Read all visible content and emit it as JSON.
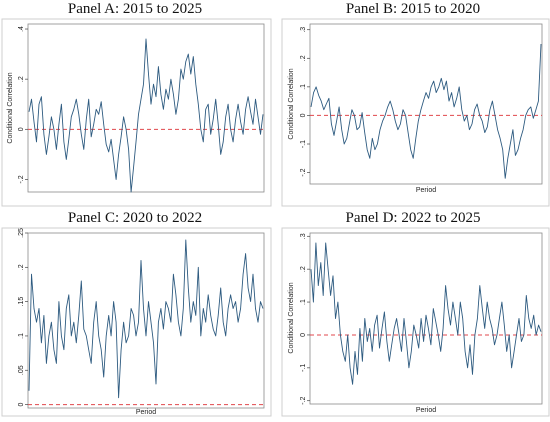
{
  "chart_data": [
    {
      "type": "line",
      "title": "Panel A: 2015 to 2025",
      "xlabel": "",
      "ylabel": "Conditional Correlation",
      "ylim": [
        -0.25,
        0.42
      ],
      "yticks": [
        -0.2,
        0,
        0.2,
        0.4
      ],
      "ytick_labels": [
        "-.2",
        "0",
        ".2",
        ".4"
      ],
      "reference_line": 0,
      "colors": {
        "series": "#2e5b80",
        "reference": "#e0474c"
      },
      "grid": false,
      "series": [
        {
          "values": [
            0.07,
            0.12,
            0.03,
            -0.05,
            0.1,
            0.13,
            -0.02,
            -0.1,
            -0.03,
            0.05,
            0.0,
            -0.08,
            0.02,
            0.1,
            -0.05,
            -0.12,
            -0.04,
            0.05,
            0.08,
            0.12,
            0.06,
            -0.02,
            -0.08,
            0.04,
            0.12,
            -0.03,
            0.02,
            0.08,
            0.06,
            0.11,
            0.02,
            -0.06,
            -0.09,
            -0.04,
            -0.12,
            -0.2,
            -0.1,
            -0.03,
            0.05,
            0.0,
            -0.08,
            -0.25,
            -0.15,
            -0.05,
            0.06,
            0.12,
            0.18,
            0.36,
            0.22,
            0.1,
            0.18,
            0.13,
            0.25,
            0.14,
            0.08,
            0.16,
            0.12,
            0.2,
            0.14,
            0.06,
            0.12,
            0.24,
            0.2,
            0.27,
            0.3,
            0.22,
            0.29,
            0.18,
            0.1,
            0.0,
            -0.05,
            0.08,
            0.1,
            -0.02,
            0.04,
            0.12,
            0.02,
            -0.1,
            -0.05,
            0.05,
            0.1,
            0.0,
            -0.05,
            0.04,
            0.1,
            0.03,
            -0.02,
            0.08,
            0.13,
            0.07,
            0.02,
            0.12,
            0.05,
            -0.02,
            0.06
          ]
        }
      ]
    },
    {
      "type": "line",
      "title": "Panel B: 2015 to 2020",
      "xlabel": "Period",
      "ylabel": "Conditional Correlation",
      "ylim": [
        -0.24,
        0.32
      ],
      "yticks": [
        -0.2,
        -0.1,
        0,
        0.1,
        0.2,
        0.3
      ],
      "ytick_labels": [
        "-.2",
        "-.1",
        "0",
        ".1",
        ".2",
        ".3"
      ],
      "reference_line": 0,
      "colors": {
        "series": "#2e5b80",
        "reference": "#e0474c"
      },
      "grid": false,
      "series": [
        {
          "values": [
            0.03,
            0.08,
            0.1,
            0.07,
            0.05,
            0.02,
            0.04,
            0.06,
            -0.03,
            -0.07,
            -0.02,
            0.03,
            -0.05,
            -0.1,
            -0.08,
            -0.03,
            0.02,
            0.0,
            -0.05,
            -0.04,
            0.01,
            -0.06,
            -0.12,
            -0.15,
            -0.08,
            -0.12,
            -0.1,
            -0.05,
            -0.02,
            0.0,
            0.03,
            0.05,
            0.02,
            -0.02,
            -0.05,
            -0.03,
            0.02,
            0.0,
            -0.06,
            -0.12,
            -0.15,
            -0.08,
            -0.02,
            0.02,
            0.05,
            0.08,
            0.06,
            0.1,
            0.12,
            0.08,
            0.1,
            0.13,
            0.09,
            0.12,
            0.05,
            0.08,
            0.03,
            0.06,
            0.1,
            0.02,
            -0.02,
            0.0,
            -0.05,
            -0.03,
            0.02,
            0.04,
            0.0,
            -0.02,
            -0.06,
            -0.04,
            0.02,
            0.05,
            0.0,
            -0.05,
            -0.08,
            -0.12,
            -0.22,
            -0.15,
            -0.1,
            -0.05,
            -0.14,
            -0.12,
            -0.08,
            -0.05,
            0.0,
            0.02,
            0.03,
            -0.01,
            0.02,
            0.05,
            0.25
          ]
        }
      ]
    },
    {
      "type": "line",
      "title": "Panel C: 2020 to 2022",
      "xlabel": "Period",
      "ylabel": "",
      "ylim": [
        -0.005,
        0.25
      ],
      "yticks": [
        0,
        0.05,
        0.1,
        0.15,
        0.2,
        0.25
      ],
      "ytick_labels": [
        "0",
        ".05",
        ".1",
        ".15",
        ".2",
        ".25"
      ],
      "reference_line": 0,
      "colors": {
        "series": "#2e5b80",
        "reference": "#e0474c"
      },
      "grid": false,
      "series": [
        {
          "values": [
            0.02,
            0.19,
            0.14,
            0.12,
            0.14,
            0.09,
            0.13,
            0.06,
            0.1,
            0.12,
            0.08,
            0.06,
            0.15,
            0.1,
            0.08,
            0.14,
            0.16,
            0.1,
            0.12,
            0.09,
            0.13,
            0.18,
            0.11,
            0.1,
            0.08,
            0.06,
            0.12,
            0.15,
            0.1,
            0.08,
            0.04,
            0.1,
            0.13,
            0.1,
            0.15,
            0.12,
            0.01,
            0.08,
            0.12,
            0.09,
            0.1,
            0.14,
            0.13,
            0.1,
            0.12,
            0.21,
            0.14,
            0.1,
            0.15,
            0.12,
            0.09,
            0.03,
            0.12,
            0.14,
            0.11,
            0.15,
            0.14,
            0.12,
            0.19,
            0.16,
            0.12,
            0.1,
            0.14,
            0.24,
            0.17,
            0.12,
            0.15,
            0.13,
            0.2,
            0.1,
            0.14,
            0.12,
            0.16,
            0.13,
            0.11,
            0.1,
            0.13,
            0.17,
            0.12,
            0.1,
            0.14,
            0.16,
            0.14,
            0.15,
            0.12,
            0.14,
            0.19,
            0.22,
            0.17,
            0.15,
            0.19,
            0.14,
            0.12,
            0.15,
            0.14
          ]
        }
      ]
    },
    {
      "type": "line",
      "title": "Panel D: 2022 to 2025",
      "xlabel": "Period",
      "ylabel": "Conditional Correlation",
      "ylim": [
        -0.21,
        0.31
      ],
      "yticks": [
        -0.2,
        -0.1,
        0,
        0.1,
        0.2,
        0.3
      ],
      "ytick_labels": [
        "-.2",
        "-.1",
        "0",
        ".1",
        ".2",
        ".3"
      ],
      "reference_line": 0,
      "colors": {
        "series": "#2e5b80",
        "reference": "#e0474c"
      },
      "grid": false,
      "series": [
        {
          "values": [
            0.2,
            0.1,
            0.28,
            0.15,
            0.22,
            0.12,
            0.28,
            0.2,
            0.12,
            0.18,
            0.05,
            0.1,
            0.0,
            -0.05,
            -0.08,
            0.0,
            -0.1,
            -0.15,
            -0.05,
            -0.12,
            0.02,
            -0.08,
            0.05,
            -0.02,
            0.02,
            -0.05,
            0.03,
            0.06,
            -0.04,
            0.02,
            0.07,
            -0.02,
            -0.08,
            -0.03,
            0.02,
            0.05,
            0.0,
            -0.05,
            0.05,
            -0.02,
            -0.1,
            -0.05,
            0.03,
            0.0,
            -0.04,
            0.05,
            -0.02,
            0.06,
            0.02,
            -0.03,
            0.08,
            0.04,
            0.0,
            -0.05,
            0.02,
            0.15,
            0.08,
            0.03,
            0.1,
            0.05,
            0.0,
            0.1,
            0.05,
            -0.05,
            -0.1,
            -0.03,
            -0.12,
            0.0,
            0.05,
            0.15,
            0.08,
            0.02,
            0.1,
            0.05,
            0.02,
            -0.03,
            0.0,
            0.05,
            0.1,
            0.03,
            -0.05,
            0.0,
            -0.1,
            -0.05,
            0.0,
            0.05,
            -0.02,
            0.0,
            0.12,
            0.05,
            0.02,
            0.06,
            0.0,
            0.03,
            0.01
          ]
        }
      ]
    }
  ]
}
